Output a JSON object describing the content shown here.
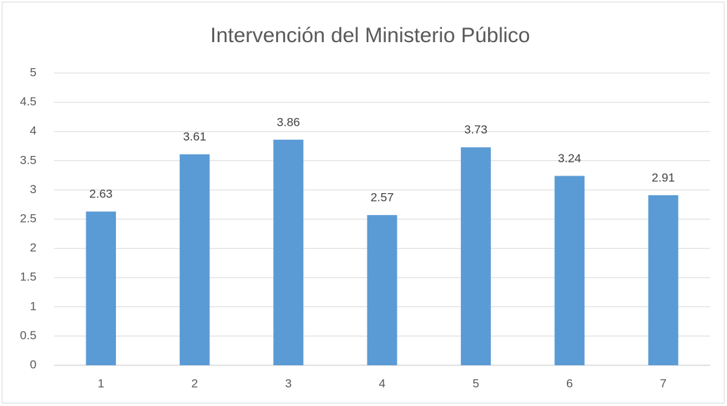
{
  "chart_data": {
    "type": "bar",
    "title": "Intervención del Ministerio Público",
    "categories": [
      "1",
      "2",
      "3",
      "4",
      "5",
      "6",
      "7"
    ],
    "values": [
      2.63,
      3.61,
      3.86,
      2.57,
      3.73,
      3.24,
      2.91
    ],
    "color": "#5b9bd5",
    "ylim": [
      0,
      5
    ],
    "yticks": [
      0,
      0.5,
      1,
      1.5,
      2,
      2.5,
      3,
      3.5,
      4,
      4.5,
      5
    ],
    "grid": true
  }
}
